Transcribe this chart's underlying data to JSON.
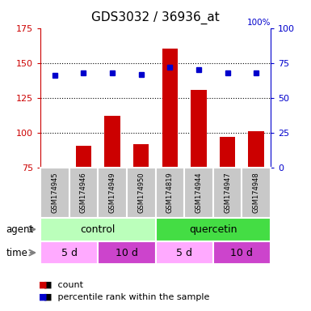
{
  "title": "GDS3032 / 36936_at",
  "samples": [
    "GSM174945",
    "GSM174946",
    "GSM174949",
    "GSM174950",
    "GSM174819",
    "GSM174944",
    "GSM174947",
    "GSM174948"
  ],
  "counts": [
    76,
    91,
    112,
    92,
    160,
    131,
    97,
    101
  ],
  "percentile_ranks": [
    66,
    68,
    68,
    67,
    72,
    70,
    68,
    68
  ],
  "ylim_left": [
    75,
    175
  ],
  "ylim_right": [
    0,
    100
  ],
  "yticks_left": [
    75,
    100,
    125,
    150,
    175
  ],
  "yticks_right": [
    0,
    25,
    50,
    75,
    100
  ],
  "bar_color": "#cc0000",
  "dot_color": "#0000cc",
  "sample_bg_color": "#c8c8c8",
  "left_axis_color": "#cc0000",
  "right_axis_color": "#0000cc",
  "agent_control_color": "#bbffbb",
  "agent_quercetin_color": "#44dd44",
  "time_5d_color": "#ffaaff",
  "time_10d_color": "#cc44cc",
  "gridline_ticks": [
    100,
    125,
    150
  ],
  "agent_groups": [
    {
      "label": "control",
      "xstart": 0,
      "xend": 4,
      "color_key": "agent_control_color"
    },
    {
      "label": "quercetin",
      "xstart": 4,
      "xend": 8,
      "color_key": "agent_quercetin_color"
    }
  ],
  "time_groups": [
    {
      "label": "5 d",
      "xstart": 0,
      "xend": 2,
      "color_key": "time_5d_color"
    },
    {
      "label": "10 d",
      "xstart": 2,
      "xend": 4,
      "color_key": "time_10d_color"
    },
    {
      "label": "5 d",
      "xstart": 4,
      "xend": 6,
      "color_key": "time_5d_color"
    },
    {
      "label": "10 d",
      "xstart": 6,
      "xend": 8,
      "color_key": "time_10d_color"
    }
  ]
}
